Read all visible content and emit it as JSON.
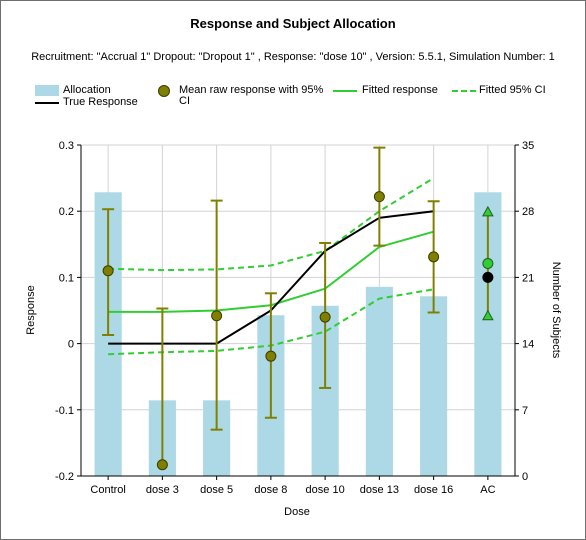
{
  "chart_data": {
    "type": "bar+line+scatter",
    "title": "Response and Subject Allocation",
    "subtitle": "Recruitment: \"Accrual 1\" Dropout: \"Dropout 1\" , Response: \"dose 10\" , Version: 5.5.1, Simulation Number: 1",
    "xlabel": "Dose",
    "ylabel_left": "Response",
    "ylabel_right": "Number of Subjects",
    "categories": [
      "Control",
      "dose 3",
      "dose 5",
      "dose 8",
      "dose 10",
      "dose 13",
      "dose 16",
      "AC"
    ],
    "ylim_left": [
      -0.2,
      0.3
    ],
    "yticks_left": [
      "-0.2",
      "-0.1",
      "0",
      "0.1",
      "0.2",
      "0.3"
    ],
    "ylim_right": [
      0,
      35
    ],
    "yticks_right": [
      "0",
      "7",
      "14",
      "21",
      "28",
      "35"
    ],
    "grid": true,
    "legend": {
      "placement": "top",
      "allocation": "Allocation",
      "true_response": "True Response",
      "mean_raw": "Mean raw response with 95% CI",
      "fitted": "Fitted response",
      "fitted_ci": "Fitted 95% CI"
    },
    "series": [
      {
        "name": "Allocation",
        "axis": "right",
        "values": [
          30,
          8,
          8,
          17,
          18,
          20,
          19,
          30
        ]
      },
      {
        "name": "True Response",
        "axis": "left",
        "values": [
          0.0,
          0.0,
          0.0,
          0.05,
          0.14,
          0.19,
          0.2,
          null
        ]
      },
      {
        "name": "Mean raw response with 95% CI",
        "axis": "left",
        "values": [
          0.11,
          -0.183,
          0.042,
          -0.019,
          0.04,
          0.222,
          0.131,
          null
        ],
        "lower": [
          0.013,
          null,
          -0.13,
          -0.112,
          -0.067,
          0.148,
          0.047,
          null
        ],
        "upper": [
          0.203,
          0.053,
          0.216,
          0.076,
          0.152,
          0.296,
          0.215,
          null
        ]
      },
      {
        "name": "Fitted response",
        "axis": "left",
        "values": [
          0.048,
          0.048,
          0.05,
          0.058,
          0.083,
          0.146,
          0.169,
          null
        ]
      },
      {
        "name": "Fitted 95% CI",
        "axis": "left",
        "lower": [
          -0.016,
          -0.013,
          -0.011,
          -0.003,
          0.018,
          0.068,
          0.082,
          null
        ],
        "upper": [
          0.113,
          0.111,
          0.112,
          0.118,
          0.14,
          0.2,
          0.25,
          null
        ]
      }
    ],
    "active_control": {
      "mean": 0.121,
      "lower": 0.042,
      "upper": 0.199,
      "true": 0.1
    }
  },
  "colors": {
    "bar": "#add8e6",
    "true_line": "#000000",
    "raw_marker": "#808000",
    "raw_errorbar": "#808000",
    "fitted": "#32cd32",
    "grid": "#d3d3d3",
    "ac_mean": "#32cd32",
    "ac_true": "#000000"
  },
  "markers": {
    "allocation": "bar-swatch",
    "true_response": "line-swatch",
    "mean_raw": "circle-marker",
    "fitted": "line-swatch",
    "fitted_ci": "dashed-line-swatch",
    "ac_ci": "triangle-marker"
  }
}
